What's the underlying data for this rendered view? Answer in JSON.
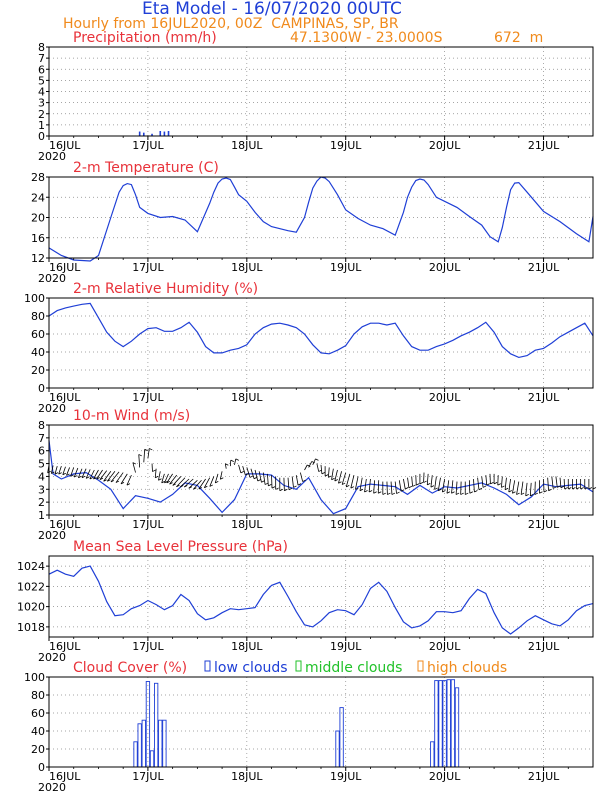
{
  "header": {
    "title": "Eta Model - 16/07/2020 00UTC",
    "subtitle": "Hourly from 16JUL2020, 00Z  CAMPINAS, SP, BR",
    "coords": "47.1300W - 23.0000S",
    "elevation": "672  m"
  },
  "colors": {
    "title": "#1f3fd6",
    "subtitle": "#f08a1c",
    "panel_title": "#e8323a",
    "series": "#1f3fd6",
    "wind_barb": "#000000",
    "low_clouds": "#1f3fd6",
    "middle_clouds": "#22c22a",
    "high_clouds": "#f08a1c"
  },
  "x_axis": {
    "range_hours": [
      0,
      132
    ],
    "tick_hours": [
      0,
      24,
      48,
      72,
      96,
      120
    ],
    "tick_labels": [
      "16JUL",
      "17JUL",
      "18JUL",
      "19JUL",
      "20JUL",
      "21JUL"
    ],
    "year_label": "2020"
  },
  "chart_data": [
    {
      "type": "bar",
      "title": "Precipitation (mm/h)",
      "ylim": [
        0,
        8
      ],
      "yticks": [
        0,
        1,
        2,
        3,
        4,
        5,
        6,
        7,
        8
      ],
      "x_hours": [
        22,
        23,
        25,
        27,
        28,
        29
      ],
      "values": [
        0.4,
        0.3,
        0.2,
        0.45,
        0.4,
        0.45
      ],
      "grid": true
    },
    {
      "type": "line",
      "title": "2-m Temperature (C)",
      "ylim": [
        12,
        28
      ],
      "yticks": [
        12,
        16,
        20,
        24,
        28
      ],
      "x_hours": [
        0,
        3,
        6,
        10,
        12,
        15,
        17,
        18,
        19,
        20,
        21,
        22,
        24,
        27,
        30,
        33,
        36,
        39,
        40,
        41,
        42,
        43,
        44,
        45,
        46,
        48,
        50,
        52,
        54,
        58,
        60,
        62,
        63,
        64,
        65,
        66,
        67,
        68,
        70,
        72,
        75,
        78,
        81,
        84,
        86,
        87,
        88,
        89,
        90,
        91,
        92,
        94,
        96,
        99,
        102,
        105,
        107,
        109,
        110,
        111,
        112,
        113,
        114,
        116,
        120,
        124,
        128,
        131,
        132
      ],
      "values": [
        14,
        12.5,
        11.6,
        11.4,
        12.5,
        20,
        25,
        26.3,
        26.7,
        26.5,
        24.5,
        22,
        20.8,
        20,
        20.2,
        19.5,
        17.2,
        22.8,
        25,
        26.8,
        27.6,
        27.8,
        27.5,
        26,
        24.5,
        23.2,
        21,
        19.2,
        18.2,
        17.4,
        17.1,
        20,
        23,
        25.8,
        27.2,
        28,
        27.8,
        27.1,
        24.5,
        21.5,
        19.8,
        18.5,
        17.8,
        16.5,
        21,
        24,
        26,
        27.3,
        27.6,
        27.4,
        26.5,
        24,
        23.2,
        22,
        20.2,
        18.5,
        16.2,
        15.2,
        18,
        22,
        25.5,
        26.8,
        26.9,
        25,
        21.2,
        19.2,
        16.8,
        15.2,
        20.2
      ]
    },
    {
      "type": "line",
      "title": "2-m Relative Humidity (%)",
      "ylim": [
        0,
        100
      ],
      "yticks": [
        0,
        20,
        40,
        60,
        80,
        100
      ],
      "x_hours": [
        0,
        2,
        4,
        6,
        8,
        10,
        12,
        14,
        16,
        18,
        20,
        22,
        24,
        26,
        28,
        30,
        32,
        34,
        36,
        38,
        40,
        42,
        44,
        46,
        48,
        50,
        52,
        54,
        56,
        58,
        60,
        62,
        64,
        66,
        68,
        70,
        72,
        74,
        76,
        78,
        80,
        82,
        84,
        86,
        88,
        90,
        92,
        94,
        96,
        98,
        100,
        102,
        104,
        106,
        108,
        110,
        112,
        114,
        116,
        118,
        120,
        122,
        124,
        126,
        128,
        130,
        132
      ],
      "values": [
        80,
        86,
        89,
        91,
        93,
        94,
        78,
        62,
        52,
        46,
        52,
        60,
        66,
        67,
        63,
        63,
        67,
        73,
        62,
        46,
        39,
        39,
        42,
        44,
        48,
        60,
        67,
        71,
        72,
        70,
        67,
        60,
        48,
        39,
        38,
        42,
        47,
        60,
        68,
        72,
        72,
        70,
        72,
        58,
        46,
        42,
        42,
        46,
        49,
        53,
        58,
        62,
        67,
        73,
        62,
        46,
        38,
        34,
        36,
        42,
        44,
        50,
        57,
        62,
        67,
        72,
        58
      ]
    },
    {
      "type": "line",
      "title": "10-m Wind (m/s)",
      "ylim": [
        1,
        8
      ],
      "yticks": [
        1,
        2,
        3,
        4,
        5,
        6,
        7,
        8
      ],
      "x_hours": [
        0,
        1,
        3,
        6,
        9,
        12,
        15,
        18,
        21,
        24,
        27,
        30,
        33,
        36,
        39,
        42,
        45,
        48,
        51,
        54,
        57,
        60,
        63,
        66,
        69,
        72,
        75,
        78,
        81,
        84,
        87,
        90,
        93,
        96,
        99,
        102,
        105,
        108,
        111,
        114,
        117,
        120,
        123,
        126,
        129,
        132
      ],
      "values": [
        6.8,
        4.2,
        3.8,
        4.2,
        4.3,
        3.7,
        3,
        1.5,
        2.5,
        2.3,
        2,
        2.6,
        3.5,
        3.3,
        2.3,
        1.2,
        2.2,
        4.2,
        4.2,
        4.1,
        3.3,
        3,
        3.9,
        2.2,
        1.1,
        1.5,
        3.2,
        3.4,
        3.3,
        3.2,
        2.6,
        3.3,
        2.7,
        3.2,
        3.1,
        3.3,
        3.5,
        3.1,
        2.6,
        1.8,
        2.4,
        3.4,
        3.2,
        3.3,
        3.4,
        2.8
      ],
      "barb_hours": [
        0,
        1,
        2,
        3,
        4,
        5,
        6,
        7,
        8,
        9,
        10,
        11,
        12,
        13,
        14,
        15,
        16,
        17,
        18,
        19,
        20,
        21,
        22,
        23,
        24,
        25,
        26,
        27,
        28,
        29,
        30,
        31,
        32,
        33,
        34,
        35,
        36,
        37,
        38,
        39,
        40,
        41,
        42,
        43,
        44,
        45,
        46,
        47,
        48,
        49,
        50,
        51,
        52,
        53,
        54,
        55,
        56,
        57,
        58,
        59,
        60,
        61,
        62,
        63,
        64,
        65,
        66,
        67,
        68,
        69,
        70,
        71,
        72,
        73,
        74,
        75,
        76,
        77,
        78,
        79,
        80,
        81,
        82,
        83,
        84,
        85,
        86,
        87,
        88,
        89,
        90,
        91,
        92,
        93,
        94,
        95,
        96,
        97,
        98,
        99,
        100,
        101,
        102,
        103,
        104,
        105,
        106,
        107,
        108,
        109,
        110,
        111,
        112,
        113,
        114,
        115,
        116,
        117,
        118,
        119,
        120,
        121,
        122,
        123,
        124,
        125,
        126,
        127,
        128,
        129,
        130,
        131,
        132
      ],
      "barb_base": [
        4.9,
        4.85,
        4.8,
        4.8,
        4.75,
        4.7,
        4.7,
        4.65,
        4.6,
        4.6,
        4.55,
        4.5,
        4.5,
        4.5,
        4.45,
        4.4,
        4.4,
        4.35,
        4.3,
        4.2,
        4.1,
        4.3,
        4.7,
        5.1,
        5.4,
        5.0,
        4.6,
        4.4,
        4.2,
        4.2,
        4.2,
        4.1,
        4.0,
        3.9,
        3.8,
        3.8,
        3.7,
        3.7,
        3.8,
        3.9,
        4.0,
        4.2,
        4.4,
        4.6,
        4.8,
        4.9,
        4.9,
        4.8,
        4.7,
        4.6,
        4.5,
        4.4,
        4.3,
        4.2,
        4.1,
        4.0,
        3.9,
        3.9,
        3.9,
        4.0,
        4.1,
        4.3,
        4.5,
        4.7,
        4.9,
        5.0,
        4.9,
        4.8,
        4.7,
        4.6,
        4.5,
        4.4,
        4.3,
        4.2,
        4.1,
        4.0,
        3.9,
        3.8,
        3.8,
        3.7,
        3.7,
        3.6,
        3.6,
        3.6,
        3.6,
        3.7,
        3.8,
        3.9,
        4.0,
        4.1,
        4.2,
        4.3,
        4.2,
        4.1,
        4.0,
        3.9,
        3.8,
        3.7,
        3.7,
        3.6,
        3.6,
        3.6,
        3.7,
        3.8,
        3.9,
        4.0,
        4.1,
        4.2,
        4.2,
        4.1,
        4.0,
        3.9,
        3.8,
        3.7,
        3.6,
        3.6,
        3.5,
        3.5,
        3.6,
        3.7,
        3.8,
        3.9,
        4.0,
        4.0,
        3.9,
        3.8,
        3.8,
        3.8,
        3.8,
        3.8,
        3.8,
        3.8,
        3.8
      ],
      "barb_dx": [
        -0.3,
        -0.4,
        -0.5,
        -0.6,
        -0.6,
        -0.7,
        -0.7,
        -0.8,
        -0.8,
        -0.9,
        -0.9,
        -1.0,
        -1.1,
        -1.3,
        -1.5,
        -1.6,
        -1.7,
        -1.8,
        -1.6,
        -1.4,
        -1.0,
        -0.6,
        -0.2,
        0.2,
        0.3,
        0.1,
        -0.2,
        -0.4,
        -0.6,
        -0.9,
        -1.3,
        -1.6,
        -1.8,
        -1.9,
        -2.0,
        -2.0,
        -1.9,
        -1.8,
        -1.5,
        -1.2,
        -0.9,
        -0.6,
        -0.4,
        -0.2,
        0.1,
        0.3,
        0.5,
        0.6,
        0.7,
        0.7,
        0.6,
        0.5,
        0.4,
        0.2,
        0.1,
        0.0,
        0.0,
        0.1,
        0.2,
        0.3,
        0.4,
        0.5,
        0.6,
        0.7,
        0.6,
        0.4,
        0.2,
        0.0,
        -0.2,
        -0.4,
        -0.6,
        -0.7,
        -0.8,
        -0.8,
        -0.7,
        -0.6,
        -0.5,
        -0.4,
        -0.3,
        -0.2,
        -0.1,
        0.0,
        0.1,
        0.2,
        0.3,
        0.4,
        0.4,
        0.3,
        0.2,
        0.1,
        0.0,
        -0.1,
        -0.2,
        -0.3,
        -0.4,
        -0.5,
        -0.5,
        -0.4,
        -0.3,
        -0.2,
        -0.1,
        0.0,
        0.1,
        0.2,
        0.3,
        0.3,
        0.2,
        0.1,
        0.0,
        -0.1,
        -0.2,
        -0.3,
        -0.4,
        -0.5,
        -0.5,
        -0.4,
        -0.3,
        -0.2,
        -0.1,
        0.0,
        0.1,
        0.2,
        0.3,
        0.3,
        0.2,
        0.1,
        0.0,
        0.0,
        0.0,
        0.0,
        0.0,
        0.0,
        0.0
      ],
      "barb_dy": [
        -0.8,
        -0.8,
        -0.8,
        -0.8,
        -0.8,
        -0.8,
        -0.9,
        -0.9,
        -0.9,
        -0.9,
        -0.9,
        -0.9,
        -0.9,
        -0.9,
        -0.9,
        -1.0,
        -1.0,
        -1.0,
        -1.0,
        -1.0,
        -1.0,
        1.0,
        1.3,
        1.3,
        1.0,
        -0.8,
        -0.9,
        -0.9,
        -0.9,
        -0.9,
        -0.9,
        -0.9,
        -0.9,
        -0.9,
        -0.8,
        -0.8,
        -0.8,
        -0.9,
        -1.0,
        -1.0,
        -1.0,
        -0.9,
        -0.8,
        0.5,
        0.6,
        0.6,
        -0.8,
        -0.9,
        -1.0,
        -1.0,
        -1.1,
        -1.1,
        -1.2,
        -1.2,
        -1.3,
        -1.3,
        -1.3,
        -1.3,
        -1.2,
        -1.1,
        -1.0,
        -0.9,
        0.5,
        0.6,
        0.6,
        -0.8,
        -0.9,
        -1.0,
        -1.0,
        -1.1,
        -1.1,
        -1.2,
        -1.2,
        -1.3,
        -1.3,
        -1.3,
        -1.3,
        -1.3,
        -1.3,
        -1.3,
        -1.3,
        -1.3,
        -1.3,
        -1.3,
        -1.2,
        -1.1,
        -1.0,
        -1.0,
        -1.0,
        -1.0,
        -1.0,
        -1.0,
        -1.1,
        -1.2,
        -1.3,
        -1.3,
        -1.3,
        -1.3,
        -1.3,
        -1.3,
        -1.3,
        -1.3,
        -1.3,
        -1.3,
        -1.2,
        -1.1,
        -1.0,
        -1.0,
        -1.0,
        -1.0,
        -1.1,
        -1.2,
        -1.3,
        -1.3,
        -1.3,
        -1.3,
        -1.3,
        -1.3,
        -1.3,
        -1.3,
        -1.3,
        -1.3,
        -1.2,
        -1.1,
        -1.0,
        -1.0,
        -1.0,
        -1.0,
        -1.0,
        -1.0,
        -1.0,
        -1.0,
        -1.0
      ]
    },
    {
      "type": "line",
      "title": "Mean Sea Level Pressure (hPa)",
      "ylim": [
        1017,
        1025
      ],
      "yticks": [
        1018,
        1020,
        1022,
        1024
      ],
      "x_hours": [
        0,
        2,
        4,
        6,
        8,
        10,
        12,
        14,
        16,
        18,
        20,
        22,
        24,
        26,
        28,
        30,
        32,
        34,
        36,
        38,
        40,
        42,
        44,
        46,
        48,
        50,
        52,
        54,
        56,
        58,
        60,
        62,
        64,
        66,
        68,
        70,
        72,
        74,
        76,
        78,
        80,
        82,
        84,
        86,
        88,
        90,
        92,
        94,
        96,
        98,
        100,
        102,
        104,
        106,
        108,
        110,
        112,
        114,
        116,
        118,
        120,
        122,
        124,
        126,
        128,
        130,
        132
      ],
      "values": [
        1023.2,
        1023.6,
        1023.2,
        1023.0,
        1023.8,
        1024.0,
        1022.5,
        1020.5,
        1019.1,
        1019.2,
        1019.8,
        1020.1,
        1020.6,
        1020.2,
        1019.7,
        1020.1,
        1021.2,
        1020.6,
        1019.3,
        1018.7,
        1018.9,
        1019.4,
        1019.8,
        1019.7,
        1019.8,
        1019.9,
        1021.2,
        1022.1,
        1022.4,
        1021.0,
        1019.5,
        1018.2,
        1018.0,
        1018.6,
        1019.4,
        1019.7,
        1019.6,
        1019.2,
        1020.2,
        1021.8,
        1022.4,
        1021.5,
        1019.9,
        1018.5,
        1017.9,
        1018.1,
        1018.6,
        1019.5,
        1019.5,
        1019.4,
        1019.6,
        1020.8,
        1021.7,
        1021.3,
        1019.4,
        1017.9,
        1017.3,
        1017.9,
        1018.6,
        1019.1,
        1018.7,
        1018.3,
        1018.1,
        1018.7,
        1019.6,
        1020.1,
        1020.3
      ]
    },
    {
      "type": "bar",
      "title": "Cloud Cover (%)",
      "ylim": [
        0,
        100
      ],
      "yticks": [
        0,
        20,
        40,
        60,
        80,
        100
      ],
      "legend": [
        "low clouds",
        "middle clouds",
        "high clouds"
      ],
      "x_hours": [
        21,
        22,
        23,
        24,
        25,
        26,
        27,
        28,
        70,
        71,
        93,
        94,
        95,
        96,
        97,
        98,
        99
      ],
      "values": [
        28,
        48,
        52,
        95,
        18,
        93,
        52,
        52,
        40,
        66,
        28,
        96,
        96,
        96,
        97,
        97,
        88
      ]
    }
  ]
}
